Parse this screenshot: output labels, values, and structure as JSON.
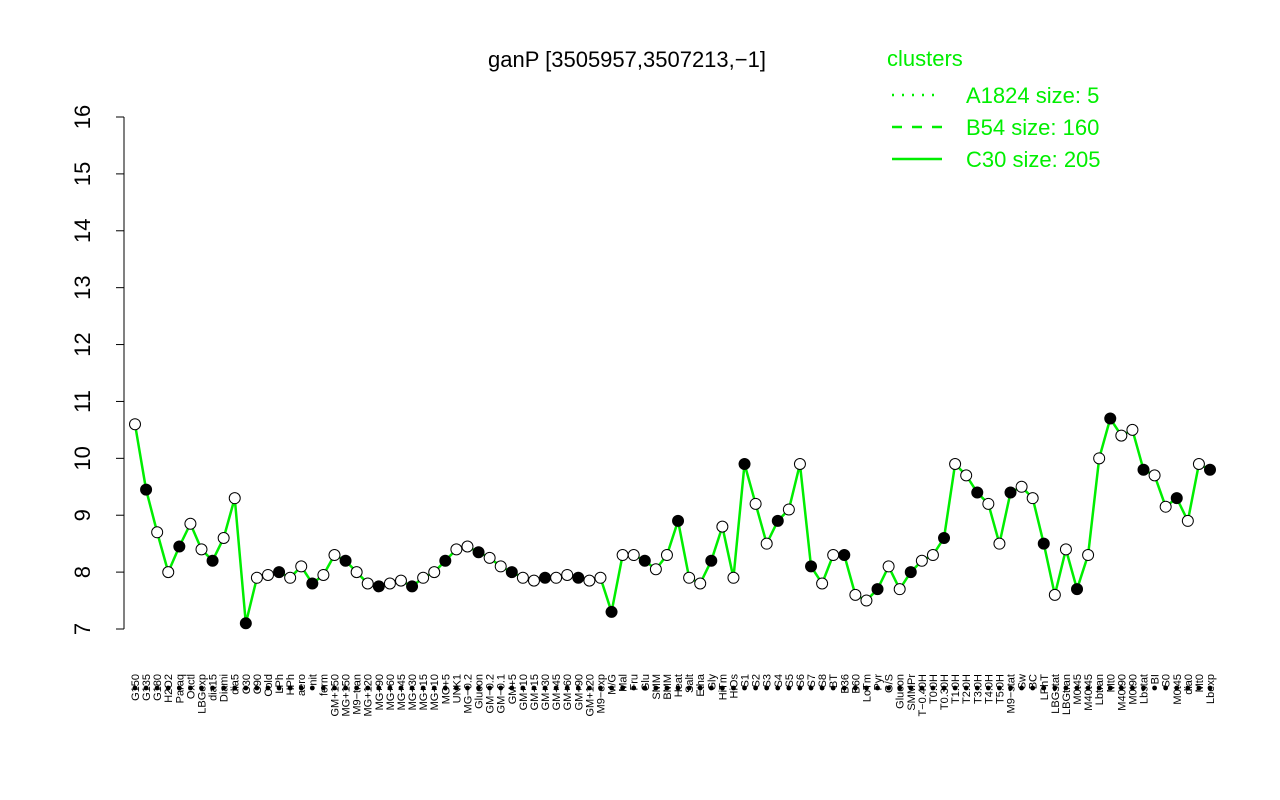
{
  "chart_data": {
    "type": "line",
    "title": "ganP [3505957,3507213,−1]",
    "xlabel": "",
    "ylabel": "",
    "ylim": [
      7,
      16
    ],
    "yticks": [
      7,
      8,
      9,
      10,
      11,
      12,
      13,
      14,
      15,
      16
    ],
    "grid": false,
    "legend": {
      "title": "clusters",
      "placement": "top-right",
      "color": "#00ee00",
      "entries": [
        {
          "label": "A1824 size: 5",
          "style": "dotted"
        },
        {
          "label": "B54 size: 160",
          "style": "dashed"
        },
        {
          "label": "C30 size: 205",
          "style": "solid"
        }
      ]
    },
    "colors": {
      "series": "#00ee00",
      "points_fill": "#ffffff",
      "points_dark": "#000000"
    },
    "x_tick_labels": [
      "G150",
      "G135",
      "G180",
      "H2O2",
      "Paraq",
      "Oxctl",
      "LBGexp",
      "dia15",
      "Diami",
      "dia5",
      "C30",
      "C90",
      "Cold",
      "LPh",
      "HPh",
      "aero",
      "nit",
      "ferm",
      "GM+150",
      "MG+150",
      "M9−tran",
      "MG+120",
      "MG+90",
      "MG+60",
      "MG+45",
      "MG+30",
      "MG+15",
      "MG+10",
      "MG+5",
      "UNK1",
      "MG−0.2",
      "Glucon",
      "GM−0.2",
      "GM−0.1",
      "GM+5",
      "GM+10",
      "GM+15",
      "GM+30",
      "GM+45",
      "GM+60",
      "GM+90",
      "GM+120",
      "M9−exp",
      "M/G",
      "Mal",
      "Fru",
      "Glu",
      "SMM",
      "BMM",
      "Heat",
      "Salt",
      "Etha",
      "Gly",
      "HiTm",
      "HiOs",
      "S1",
      "S2",
      "S3",
      "S4",
      "S5",
      "S6",
      "S7",
      "S8",
      "BT",
      "B36",
      "B60",
      "LoTm",
      "Pyr",
      "G/S",
      "Glucon",
      "SMMPr",
      "T−0.40H",
      "T0.0H",
      "T0.30H",
      "T1.0H",
      "T2.0H",
      "T3.0H",
      "T4.0H",
      "T5.0H",
      "M9−stat",
      "Sw",
      "BC",
      "LPhT",
      "LBGstat",
      "LBGtran",
      "M0t45",
      "M40t45",
      "Lbtran",
      "Mt0",
      "M40t90",
      "M0t90",
      "Lbstat",
      "BI",
      "S0",
      "M0t45",
      "dia0",
      "Mt0",
      "Lbexp"
    ],
    "series": [
      {
        "values": [
          10.6,
          9.45,
          8.7,
          8.0,
          8.45,
          8.85,
          8.4,
          8.2,
          8.6,
          9.3,
          7.1,
          7.9,
          7.95,
          8.0,
          7.9,
          8.1,
          7.8,
          7.95,
          8.3,
          8.2,
          8.0,
          7.8,
          7.75,
          7.8,
          7.85,
          7.75,
          7.9,
          8.0,
          8.2,
          8.4,
          8.45,
          8.35,
          8.25,
          8.1,
          8.0,
          7.9,
          7.85,
          7.9,
          7.9,
          7.95,
          7.9,
          7.85,
          7.9,
          7.3,
          8.3,
          8.3,
          8.2,
          8.05,
          8.3,
          8.9,
          7.9,
          7.8,
          8.2,
          8.8,
          7.9,
          9.9,
          9.2,
          8.5,
          8.9,
          9.1,
          9.9,
          8.1,
          7.8,
          8.3,
          8.3,
          7.6,
          7.5,
          7.7,
          8.1,
          7.7,
          8.0,
          8.2,
          8.3,
          8.6,
          9.9,
          9.7,
          9.4,
          9.2,
          8.5,
          9.4,
          9.5,
          9.3,
          8.5,
          7.6,
          8.4,
          7.7,
          8.3,
          10.0,
          10.7,
          10.4,
          10.5,
          9.8,
          9.7,
          9.15,
          9.3,
          8.9,
          9.9,
          9.8
        ]
      }
    ]
  }
}
